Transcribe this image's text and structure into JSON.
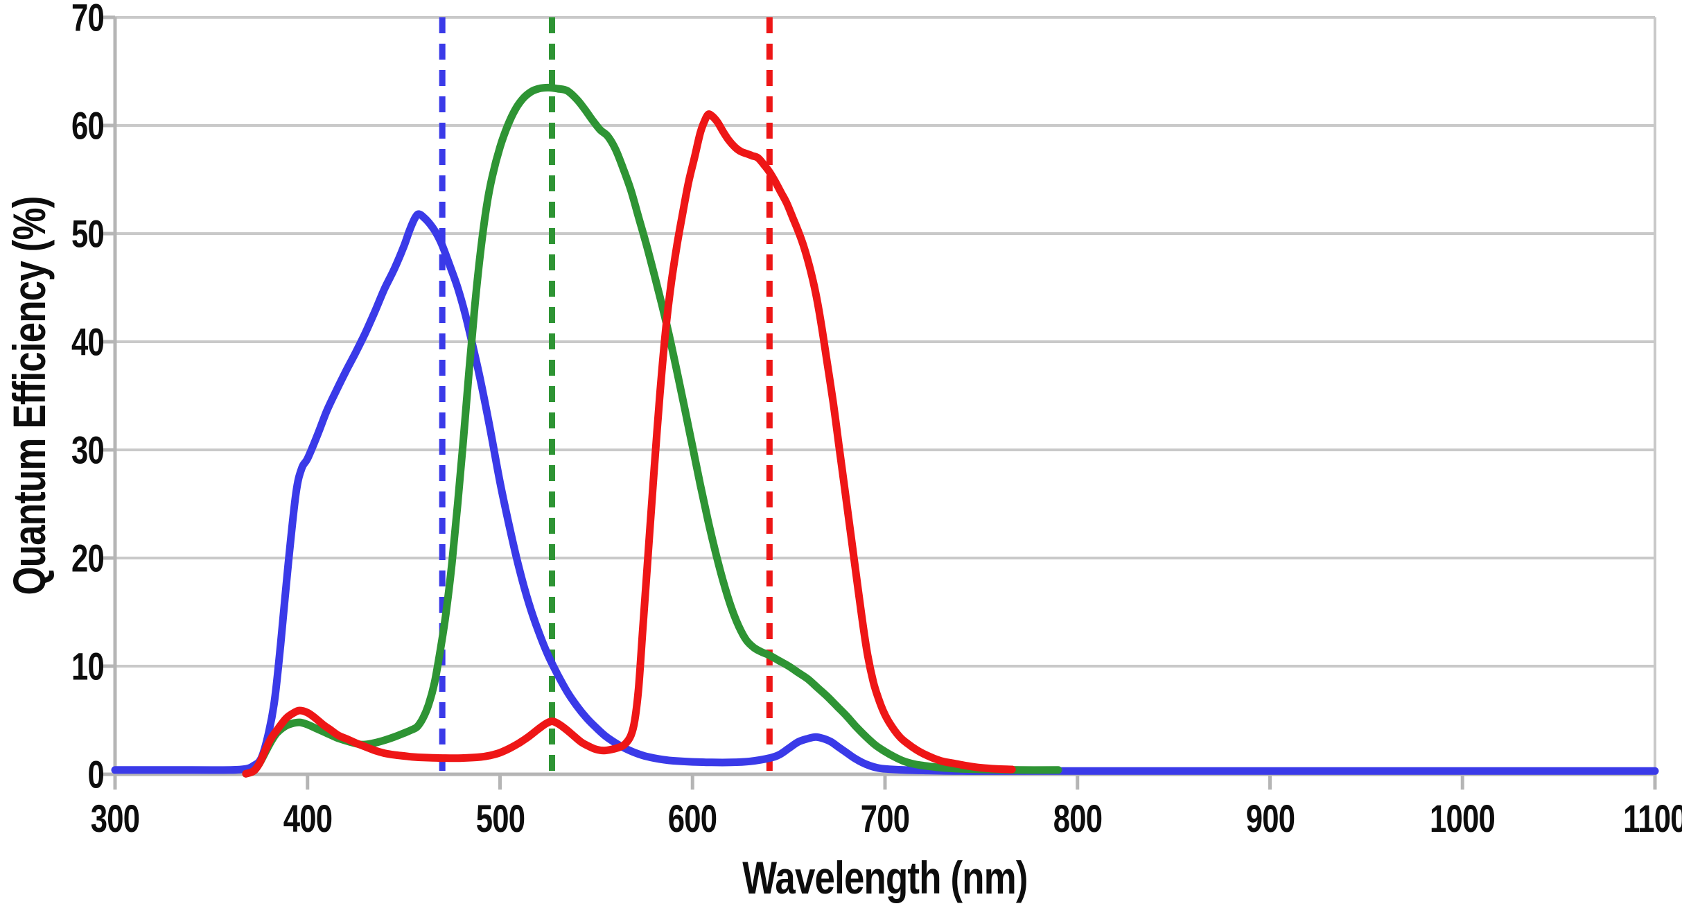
{
  "figure": {
    "background": "#ffffff",
    "text_color": "#0d0d0d",
    "gridline_color": "#c9c9c9",
    "axis_color": "#b5b5b5"
  },
  "chart_data": {
    "type": "line",
    "title": "",
    "xlabel": "Wavelength (nm)",
    "ylabel": "Quantum Efficiency (%)",
    "xlim": [
      300,
      1100
    ],
    "ylim": [
      0,
      70
    ],
    "x_ticks": [
      300,
      400,
      500,
      600,
      700,
      800,
      900,
      1000,
      1100
    ],
    "y_ticks": [
      0,
      10,
      20,
      30,
      40,
      50,
      60,
      70
    ],
    "grid": "horizontal",
    "legend_position": "none",
    "series": [
      {
        "name": "blue-channel-qe",
        "color": "#3a3ae8",
        "points": [
          [
            300,
            0.4
          ],
          [
            340,
            0.4
          ],
          [
            360,
            0.4
          ],
          [
            368,
            0.5
          ],
          [
            372,
            0.8
          ],
          [
            376,
            1.5
          ],
          [
            380,
            4
          ],
          [
            383,
            7
          ],
          [
            386,
            12
          ],
          [
            390,
            19.5
          ],
          [
            394,
            26
          ],
          [
            397,
            28.3
          ],
          [
            400,
            29.2
          ],
          [
            405,
            31.3
          ],
          [
            410,
            33.6
          ],
          [
            415,
            35.5
          ],
          [
            420,
            37.3
          ],
          [
            425,
            39
          ],
          [
            430,
            40.8
          ],
          [
            435,
            42.8
          ],
          [
            440,
            44.9
          ],
          [
            445,
            46.7
          ],
          [
            450,
            48.8
          ],
          [
            453,
            50.3
          ],
          [
            456,
            51.5
          ],
          [
            458,
            51.8
          ],
          [
            461,
            51.4
          ],
          [
            464,
            50.8
          ],
          [
            467,
            50
          ],
          [
            470,
            48.9
          ],
          [
            474,
            47
          ],
          [
            478,
            45
          ],
          [
            482,
            42.5
          ],
          [
            486,
            39.5
          ],
          [
            490,
            36.3
          ],
          [
            495,
            31.8
          ],
          [
            500,
            27
          ],
          [
            505,
            22.8
          ],
          [
            510,
            19
          ],
          [
            515,
            15.8
          ],
          [
            520,
            13.2
          ],
          [
            525,
            11
          ],
          [
            530,
            9.2
          ],
          [
            535,
            7.6
          ],
          [
            540,
            6.3
          ],
          [
            545,
            5.2
          ],
          [
            550,
            4.3
          ],
          [
            555,
            3.5
          ],
          [
            560,
            2.9
          ],
          [
            565,
            2.4
          ],
          [
            570,
            2
          ],
          [
            575,
            1.7
          ],
          [
            580,
            1.5
          ],
          [
            585,
            1.35
          ],
          [
            590,
            1.25
          ],
          [
            600,
            1.15
          ],
          [
            610,
            1.1
          ],
          [
            620,
            1.1
          ],
          [
            630,
            1.2
          ],
          [
            640,
            1.5
          ],
          [
            645,
            1.8
          ],
          [
            650,
            2.4
          ],
          [
            655,
            3
          ],
          [
            660,
            3.3
          ],
          [
            664,
            3.45
          ],
          [
            668,
            3.3
          ],
          [
            672,
            3
          ],
          [
            676,
            2.5
          ],
          [
            680,
            2
          ],
          [
            684,
            1.5
          ],
          [
            688,
            1.1
          ],
          [
            692,
            0.8
          ],
          [
            696,
            0.6
          ],
          [
            700,
            0.5
          ],
          [
            710,
            0.4
          ],
          [
            720,
            0.35
          ],
          [
            740,
            0.3
          ],
          [
            780,
            0.3
          ],
          [
            900,
            0.3
          ],
          [
            1000,
            0.3
          ],
          [
            1100,
            0.3
          ]
        ]
      },
      {
        "name": "green-channel-qe",
        "color": "#2e9434",
        "points": [
          [
            368,
            0.05
          ],
          [
            372,
            0.3
          ],
          [
            375,
            1
          ],
          [
            378,
            2
          ],
          [
            381,
            3
          ],
          [
            384,
            3.8
          ],
          [
            388,
            4.4
          ],
          [
            392,
            4.7
          ],
          [
            396,
            4.8
          ],
          [
            400,
            4.6
          ],
          [
            405,
            4.2
          ],
          [
            410,
            3.8
          ],
          [
            415,
            3.4
          ],
          [
            420,
            3.1
          ],
          [
            425,
            2.85
          ],
          [
            428,
            2.75
          ],
          [
            432,
            2.8
          ],
          [
            436,
            2.95
          ],
          [
            440,
            3.15
          ],
          [
            445,
            3.45
          ],
          [
            450,
            3.8
          ],
          [
            454,
            4.1
          ],
          [
            457,
            4.4
          ],
          [
            460,
            5.2
          ],
          [
            463,
            6.5
          ],
          [
            466,
            8.5
          ],
          [
            469,
            11.5
          ],
          [
            472,
            15
          ],
          [
            475,
            19.5
          ],
          [
            478,
            25
          ],
          [
            481,
            31
          ],
          [
            484,
            37.5
          ],
          [
            487,
            43.5
          ],
          [
            490,
            48.5
          ],
          [
            493,
            52.5
          ],
          [
            496,
            55.3
          ],
          [
            500,
            58
          ],
          [
            504,
            60
          ],
          [
            508,
            61.5
          ],
          [
            512,
            62.5
          ],
          [
            516,
            63.1
          ],
          [
            520,
            63.4
          ],
          [
            525,
            63.5
          ],
          [
            530,
            63.4
          ],
          [
            535,
            63.2
          ],
          [
            540,
            62.4
          ],
          [
            544,
            61.5
          ],
          [
            548,
            60.5
          ],
          [
            552,
            59.6
          ],
          [
            556,
            59
          ],
          [
            560,
            57.8
          ],
          [
            564,
            56
          ],
          [
            568,
            54
          ],
          [
            572,
            51.5
          ],
          [
            576,
            49
          ],
          [
            580,
            46.3
          ],
          [
            584,
            43.5
          ],
          [
            588,
            40.5
          ],
          [
            592,
            37.2
          ],
          [
            596,
            33.8
          ],
          [
            600,
            30.3
          ],
          [
            604,
            26.8
          ],
          [
            608,
            23.5
          ],
          [
            612,
            20.5
          ],
          [
            616,
            17.8
          ],
          [
            620,
            15.5
          ],
          [
            624,
            13.7
          ],
          [
            628,
            12.4
          ],
          [
            632,
            11.7
          ],
          [
            636,
            11.3
          ],
          [
            640,
            11
          ],
          [
            645,
            10.5
          ],
          [
            650,
            10
          ],
          [
            655,
            9.4
          ],
          [
            660,
            8.8
          ],
          [
            665,
            8
          ],
          [
            670,
            7.2
          ],
          [
            675,
            6.3
          ],
          [
            680,
            5.4
          ],
          [
            685,
            4.4
          ],
          [
            690,
            3.5
          ],
          [
            695,
            2.7
          ],
          [
            700,
            2.1
          ],
          [
            705,
            1.6
          ],
          [
            710,
            1.2
          ],
          [
            715,
            0.95
          ],
          [
            720,
            0.8
          ],
          [
            730,
            0.6
          ],
          [
            740,
            0.5
          ],
          [
            750,
            0.45
          ],
          [
            770,
            0.4
          ],
          [
            790,
            0.4
          ]
        ]
      },
      {
        "name": "red-channel-qe",
        "color": "#ee1616",
        "points": [
          [
            368,
            0.05
          ],
          [
            372,
            0.3
          ],
          [
            375,
            1
          ],
          [
            378,
            2.2
          ],
          [
            381,
            3.3
          ],
          [
            385,
            4.3
          ],
          [
            389,
            5.2
          ],
          [
            393,
            5.7
          ],
          [
            396,
            5.9
          ],
          [
            400,
            5.7
          ],
          [
            404,
            5.2
          ],
          [
            408,
            4.6
          ],
          [
            412,
            4.1
          ],
          [
            416,
            3.6
          ],
          [
            420,
            3.3
          ],
          [
            425,
            2.9
          ],
          [
            430,
            2.55
          ],
          [
            435,
            2.2
          ],
          [
            440,
            1.95
          ],
          [
            445,
            1.8
          ],
          [
            450,
            1.7
          ],
          [
            455,
            1.6
          ],
          [
            460,
            1.55
          ],
          [
            470,
            1.5
          ],
          [
            480,
            1.5
          ],
          [
            490,
            1.6
          ],
          [
            495,
            1.75
          ],
          [
            500,
            2
          ],
          [
            505,
            2.4
          ],
          [
            510,
            2.9
          ],
          [
            515,
            3.5
          ],
          [
            520,
            4.2
          ],
          [
            524,
            4.7
          ],
          [
            527,
            4.9
          ],
          [
            530,
            4.7
          ],
          [
            534,
            4.2
          ],
          [
            538,
            3.6
          ],
          [
            542,
            3
          ],
          [
            546,
            2.6
          ],
          [
            550,
            2.3
          ],
          [
            554,
            2.2
          ],
          [
            558,
            2.3
          ],
          [
            562,
            2.5
          ],
          [
            565,
            2.8
          ],
          [
            568,
            3.6
          ],
          [
            570,
            5
          ],
          [
            572,
            8
          ],
          [
            574,
            13
          ],
          [
            576,
            18
          ],
          [
            578,
            23
          ],
          [
            580,
            28
          ],
          [
            583,
            35
          ],
          [
            586,
            41
          ],
          [
            589,
            45.5
          ],
          [
            592,
            49
          ],
          [
            595,
            52
          ],
          [
            598,
            54.8
          ],
          [
            601,
            57
          ],
          [
            604,
            59.3
          ],
          [
            606,
            60.3
          ],
          [
            608,
            61
          ],
          [
            610,
            60.9
          ],
          [
            613,
            60.3
          ],
          [
            616,
            59.4
          ],
          [
            619,
            58.6
          ],
          [
            622,
            58
          ],
          [
            625,
            57.6
          ],
          [
            628,
            57.4
          ],
          [
            631,
            57.2
          ],
          [
            634,
            57
          ],
          [
            637,
            56.4
          ],
          [
            640,
            55.7
          ],
          [
            643,
            54.8
          ],
          [
            646,
            53.8
          ],
          [
            649,
            52.8
          ],
          [
            652,
            51.5
          ],
          [
            655,
            50.2
          ],
          [
            658,
            48.7
          ],
          [
            661,
            46.8
          ],
          [
            664,
            44.5
          ],
          [
            667,
            41.5
          ],
          [
            670,
            38
          ],
          [
            673,
            34.5
          ],
          [
            676,
            30.5
          ],
          [
            679,
            26.5
          ],
          [
            682,
            22.5
          ],
          [
            685,
            18.5
          ],
          [
            688,
            14.5
          ],
          [
            691,
            11
          ],
          [
            694,
            8.5
          ],
          [
            697,
            6.8
          ],
          [
            700,
            5.5
          ],
          [
            704,
            4.3
          ],
          [
            708,
            3.4
          ],
          [
            712,
            2.8
          ],
          [
            716,
            2.3
          ],
          [
            720,
            1.9
          ],
          [
            725,
            1.5
          ],
          [
            730,
            1.2
          ],
          [
            736,
            1
          ],
          [
            742,
            0.8
          ],
          [
            750,
            0.6
          ],
          [
            758,
            0.5
          ],
          [
            766,
            0.45
          ]
        ]
      }
    ],
    "reference_lines": [
      {
        "name": "blue-reference-wavelength",
        "x": 470,
        "color": "#3a3ae8",
        "style": "dashed"
      },
      {
        "name": "green-reference-wavelength",
        "x": 527,
        "color": "#2e9434",
        "style": "dashed"
      },
      {
        "name": "red-reference-wavelength",
        "x": 640,
        "color": "#ee1616",
        "style": "dashed"
      }
    ]
  }
}
